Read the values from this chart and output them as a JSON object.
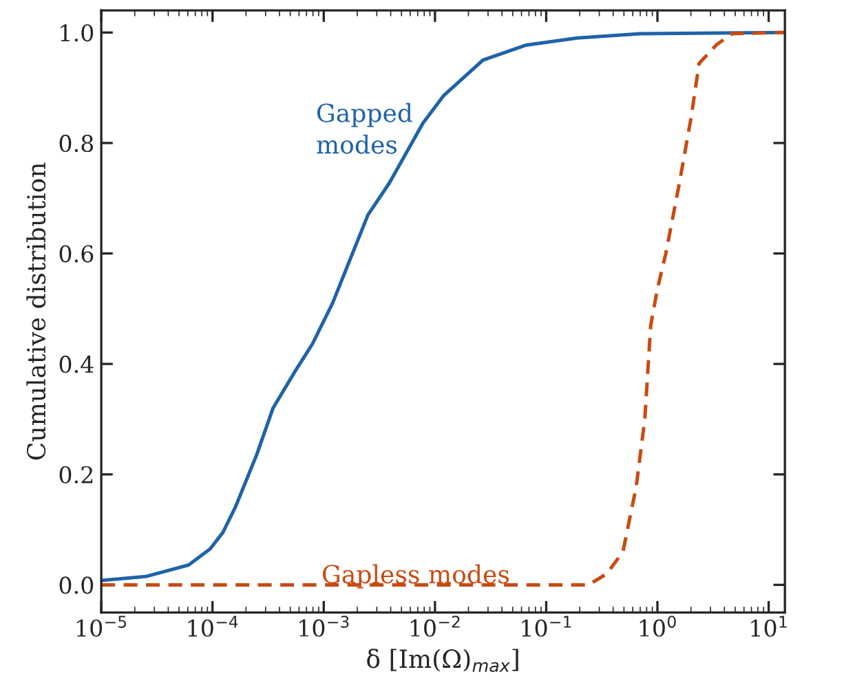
{
  "chart_data": {
    "type": "line",
    "xlabel": "δ [Im(Ω)$_{max}$]",
    "ylabel": "Cumulative distribution",
    "log": "x",
    "grid": false,
    "legend": false,
    "xlim": [
      1e-05,
      14
    ],
    "ylim": [
      -0.05,
      1.04
    ],
    "xticks": [
      {
        "value": 1e-05,
        "label": "10$^{−5}$"
      },
      {
        "value": 0.0001,
        "label": "10$^{−4}$"
      },
      {
        "value": 0.001,
        "label": "10$^{−3}$"
      },
      {
        "value": 0.01,
        "label": "10$^{−2}$"
      },
      {
        "value": 0.1,
        "label": "10$^{−1}$"
      },
      {
        "value": 1,
        "label": "10$^{0}$"
      },
      {
        "value": 10,
        "label": "10$^{1}$"
      }
    ],
    "yticks": [
      {
        "value": 0,
        "label": "0.0"
      },
      {
        "value": 0.2,
        "label": "0.2"
      },
      {
        "value": 0.4,
        "label": "0.4"
      },
      {
        "value": 0.6,
        "label": "0.6"
      },
      {
        "value": 0.8,
        "label": "0.8"
      },
      {
        "value": 1,
        "label": "1.0"
      }
    ],
    "series": [
      {
        "name": "Gapped\nmodes",
        "color": "#1f63a8",
        "line_style": "solid",
        "x": [
          1e-05,
          2.5e-05,
          6.1e-05,
          9.5e-05,
          0.000124,
          0.00016,
          0.00025,
          0.00035,
          0.00055,
          0.00079,
          0.0012,
          0.0017,
          0.0025,
          0.0039,
          0.0078,
          0.012,
          0.027,
          0.065,
          0.19,
          0.7,
          14
        ],
        "values": [
          0.008,
          0.015,
          0.036,
          0.065,
          0.095,
          0.14,
          0.236,
          0.32,
          0.386,
          0.436,
          0.51,
          0.586,
          0.67,
          0.728,
          0.836,
          0.886,
          0.95,
          0.977,
          0.99,
          0.998,
          1.0
        ]
      },
      {
        "name": "Gapless modes",
        "color": "#c84b12",
        "line_style": "dashed",
        "x": [
          1e-05,
          0.24,
          0.35,
          0.49,
          0.645,
          0.77,
          0.87,
          1.0,
          1.19,
          1.55,
          2.0,
          2.37,
          3.4,
          4.7,
          14
        ],
        "values": [
          0.0,
          0.0,
          0.02,
          0.06,
          0.178,
          0.3,
          0.47,
          0.536,
          0.6,
          0.72,
          0.844,
          0.944,
          0.978,
          0.998,
          1.0
        ]
      }
    ]
  }
}
